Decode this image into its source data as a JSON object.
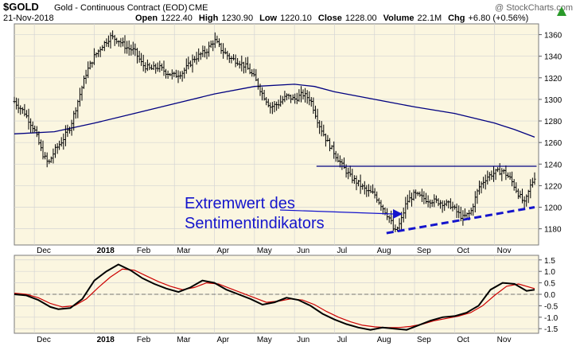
{
  "header": {
    "symbol": "$GOLD",
    "name": "Gold - Continuous Contract (EOD)",
    "exchange": "CME",
    "date": "21-Nov-2018",
    "watermark": "@ StockCharts.com",
    "open_label": "Open",
    "open_value": "1222.40",
    "high_label": "High",
    "high_value": "1230.90",
    "low_label": "Low",
    "low_value": "1220.10",
    "close_label": "Close",
    "close_value": "1228.00",
    "volume_label": "Volume",
    "volume_value": "22.1M",
    "chg_label": "Chg",
    "chg_value": "+6.80 (+0.56%)"
  },
  "annotation": {
    "line1": "Extremwert des",
    "line2": "Sentimentindikators"
  },
  "colors": {
    "panel_bg": "#fbf6e0",
    "outer_bg": "#ffffff",
    "price": "#000000",
    "ma": "#000080",
    "annotation": "#1414cc",
    "macd": "#000000",
    "signal": "#cc0000",
    "grid": "#d4d4d4"
  },
  "chart_data": [
    {
      "type": "ohlc",
      "ylim": [
        1165,
        1370
      ],
      "y_ticks": [
        "1180",
        "1200",
        "1220",
        "1240",
        "1260",
        "1280",
        "1300",
        "1320",
        "1340",
        "1360"
      ],
      "x_labels": [
        "Dec",
        "2018",
        "Feb",
        "Mar",
        "Apr",
        "May",
        "Jun",
        "Jul",
        "Aug",
        "Sep",
        "Oct",
        "Nov"
      ],
      "x_label_pos": [
        0.5,
        2.0,
        3.0,
        4.0,
        5.0,
        6.0,
        7.0,
        8.0,
        9.0,
        10.0,
        11.0,
        12.0
      ],
      "xlim": [
        0,
        13.1
      ],
      "price_path": [
        [
          0,
          1298
        ],
        [
          0.25,
          1288
        ],
        [
          0.5,
          1272
        ],
        [
          0.7,
          1250
        ],
        [
          0.85,
          1240
        ],
        [
          1.0,
          1252
        ],
        [
          1.2,
          1262
        ],
        [
          1.4,
          1275
        ],
        [
          1.6,
          1300
        ],
        [
          1.8,
          1325
        ],
        [
          2.0,
          1340
        ],
        [
          2.2,
          1350
        ],
        [
          2.4,
          1358
        ],
        [
          2.6,
          1355
        ],
        [
          2.8,
          1348
        ],
        [
          3.0,
          1345
        ],
        [
          3.2,
          1332
        ],
        [
          3.4,
          1328
        ],
        [
          3.6,
          1330
        ],
        [
          3.8,
          1325
        ],
        [
          4.0,
          1322
        ],
        [
          4.2,
          1325
        ],
        [
          4.5,
          1338
        ],
        [
          4.8,
          1345
        ],
        [
          5.0,
          1355
        ],
        [
          5.2,
          1345
        ],
        [
          5.4,
          1338
        ],
        [
          5.6,
          1335
        ],
        [
          5.8,
          1330
        ],
        [
          6.0,
          1320
        ],
        [
          6.2,
          1305
        ],
        [
          6.4,
          1293
        ],
        [
          6.6,
          1296
        ],
        [
          6.8,
          1303
        ],
        [
          7.0,
          1300
        ],
        [
          7.2,
          1305
        ],
        [
          7.4,
          1300
        ],
        [
          7.6,
          1278
        ],
        [
          7.8,
          1262
        ],
        [
          8.0,
          1250
        ],
        [
          8.2,
          1238
        ],
        [
          8.4,
          1228
        ],
        [
          8.6,
          1222
        ],
        [
          8.8,
          1215
        ],
        [
          9.0,
          1212
        ],
        [
          9.2,
          1200
        ],
        [
          9.4,
          1188
        ],
        [
          9.5,
          1176
        ],
        [
          9.65,
          1186
        ],
        [
          9.8,
          1205
        ],
        [
          10.0,
          1212
        ],
        [
          10.3,
          1207
        ],
        [
          10.6,
          1205
        ],
        [
          10.9,
          1202
        ],
        [
          11.0,
          1198
        ],
        [
          11.2,
          1190
        ],
        [
          11.4,
          1195
        ],
        [
          11.6,
          1218
        ],
        [
          11.8,
          1228
        ],
        [
          12.0,
          1232
        ],
        [
          12.2,
          1234
        ],
        [
          12.4,
          1226
        ],
        [
          12.6,
          1212
        ],
        [
          12.75,
          1203
        ],
        [
          12.9,
          1220
        ],
        [
          13.0,
          1228
        ]
      ],
      "ma_path": [
        [
          0,
          1268
        ],
        [
          1,
          1270
        ],
        [
          2,
          1278
        ],
        [
          3,
          1287
        ],
        [
          4,
          1296
        ],
        [
          5,
          1305
        ],
        [
          6,
          1312
        ],
        [
          7,
          1314
        ],
        [
          7.5,
          1312
        ],
        [
          8,
          1307
        ],
        [
          9,
          1300
        ],
        [
          10,
          1293
        ],
        [
          11,
          1287
        ],
        [
          12,
          1278
        ],
        [
          12.5,
          1272
        ],
        [
          13,
          1265
        ]
      ],
      "resistance": {
        "y": 1238,
        "x_start": 7.55,
        "x_end": 13.05
      },
      "trendline": {
        "x1": 9.3,
        "y1": 1176,
        "x2": 13.0,
        "y2": 1200
      }
    },
    {
      "type": "line",
      "ylim": [
        -1.7,
        1.7
      ],
      "y_ticks": [
        "1.5",
        "1.0",
        "0.5",
        "0.0",
        "-0.5",
        "-1.0",
        "-1.5"
      ],
      "zero_line": 0,
      "x_labels": [
        "Dec",
        "2018",
        "Feb",
        "Mar",
        "Apr",
        "May",
        "Jun",
        "Jul",
        "Aug",
        "Sep",
        "Oct",
        "Nov"
      ],
      "xlim": [
        0,
        13.1
      ],
      "series": [
        {
          "role": "macd",
          "points": [
            [
              0,
              0.0
            ],
            [
              0.3,
              -0.05
            ],
            [
              0.6,
              -0.25
            ],
            [
              0.9,
              -0.55
            ],
            [
              1.1,
              -0.65
            ],
            [
              1.4,
              -0.6
            ],
            [
              1.7,
              -0.2
            ],
            [
              2.0,
              0.6
            ],
            [
              2.3,
              1.0
            ],
            [
              2.6,
              1.3
            ],
            [
              2.9,
              1.05
            ],
            [
              3.2,
              0.7
            ],
            [
              3.5,
              0.45
            ],
            [
              3.8,
              0.25
            ],
            [
              4.1,
              0.1
            ],
            [
              4.4,
              0.3
            ],
            [
              4.7,
              0.6
            ],
            [
              5.0,
              0.5
            ],
            [
              5.3,
              0.2
            ],
            [
              5.6,
              0.0
            ],
            [
              5.9,
              -0.2
            ],
            [
              6.2,
              -0.45
            ],
            [
              6.5,
              -0.35
            ],
            [
              6.8,
              -0.15
            ],
            [
              7.1,
              -0.25
            ],
            [
              7.4,
              -0.5
            ],
            [
              7.7,
              -0.85
            ],
            [
              8.0,
              -1.1
            ],
            [
              8.3,
              -1.3
            ],
            [
              8.6,
              -1.45
            ],
            [
              8.9,
              -1.55
            ],
            [
              9.2,
              -1.45
            ],
            [
              9.5,
              -1.5
            ],
            [
              9.8,
              -1.55
            ],
            [
              10.1,
              -1.35
            ],
            [
              10.4,
              -1.15
            ],
            [
              10.7,
              -1.0
            ],
            [
              11.0,
              -0.95
            ],
            [
              11.3,
              -0.8
            ],
            [
              11.6,
              -0.5
            ],
            [
              11.9,
              0.2
            ],
            [
              12.2,
              0.5
            ],
            [
              12.5,
              0.45
            ],
            [
              12.8,
              0.15
            ],
            [
              13.0,
              0.2
            ]
          ]
        },
        {
          "role": "signal",
          "points": [
            [
              0,
              0.05
            ],
            [
              0.3,
              0.0
            ],
            [
              0.6,
              -0.15
            ],
            [
              0.9,
              -0.4
            ],
            [
              1.2,
              -0.55
            ],
            [
              1.5,
              -0.5
            ],
            [
              1.8,
              -0.2
            ],
            [
              2.1,
              0.3
            ],
            [
              2.4,
              0.75
            ],
            [
              2.7,
              1.1
            ],
            [
              3.0,
              1.05
            ],
            [
              3.3,
              0.8
            ],
            [
              3.6,
              0.55
            ],
            [
              3.9,
              0.35
            ],
            [
              4.2,
              0.2
            ],
            [
              4.5,
              0.3
            ],
            [
              4.8,
              0.5
            ],
            [
              5.1,
              0.45
            ],
            [
              5.4,
              0.25
            ],
            [
              5.7,
              0.05
            ],
            [
              6.0,
              -0.15
            ],
            [
              6.3,
              -0.35
            ],
            [
              6.6,
              -0.3
            ],
            [
              6.9,
              -0.2
            ],
            [
              7.2,
              -0.25
            ],
            [
              7.5,
              -0.45
            ],
            [
              7.8,
              -0.75
            ],
            [
              8.1,
              -1.0
            ],
            [
              8.4,
              -1.2
            ],
            [
              8.7,
              -1.35
            ],
            [
              9.0,
              -1.42
            ],
            [
              9.3,
              -1.45
            ],
            [
              9.6,
              -1.45
            ],
            [
              9.9,
              -1.4
            ],
            [
              10.2,
              -1.3
            ],
            [
              10.5,
              -1.15
            ],
            [
              10.8,
              -1.05
            ],
            [
              11.1,
              -0.95
            ],
            [
              11.4,
              -0.8
            ],
            [
              11.7,
              -0.5
            ],
            [
              12.0,
              -0.05
            ],
            [
              12.3,
              0.35
            ],
            [
              12.6,
              0.45
            ],
            [
              12.9,
              0.3
            ],
            [
              13.0,
              0.25
            ]
          ]
        }
      ]
    }
  ]
}
